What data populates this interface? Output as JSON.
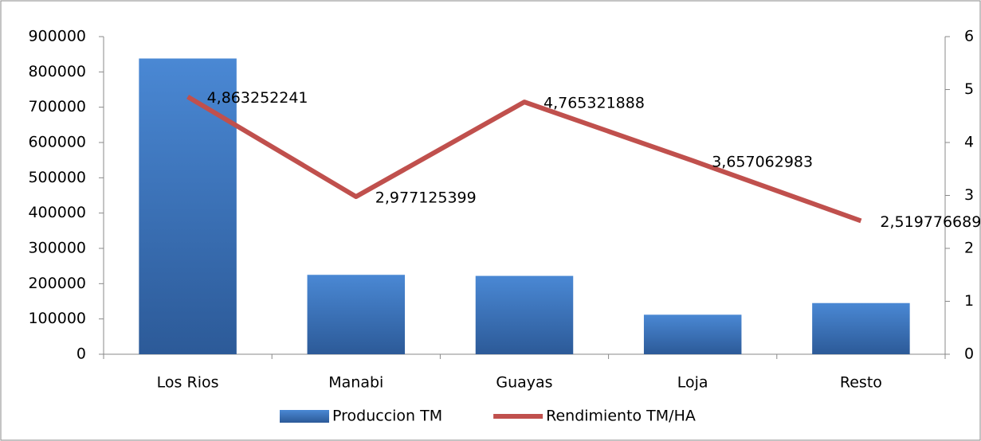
{
  "chart_data": {
    "type": "bar-line",
    "categories": [
      "Los Rios",
      "Manabi",
      "Guayas",
      "Loja",
      "Resto"
    ],
    "series": [
      {
        "name": "Produccion TM",
        "color": "#3a72bd",
        "type": "bar",
        "values": [
          838000,
          225000,
          222000,
          112000,
          145000
        ]
      },
      {
        "name": "Rendimiento TM/HA",
        "color": "#c0504d",
        "type": "line",
        "axis": "y2",
        "values": [
          4.863252241,
          2.977125399,
          4.765321888,
          3.657062983,
          2.519776689
        ],
        "value_labels": [
          "4,863252241",
          "2,977125399",
          "4,765321888",
          "3,657062983",
          "2,519776689"
        ]
      }
    ],
    "ylim": [
      0,
      900000
    ],
    "yticks": [
      0,
      100000,
      200000,
      300000,
      400000,
      500000,
      600000,
      700000,
      800000,
      900000
    ],
    "y2lim": [
      0,
      6
    ],
    "y2ticks": [
      0,
      1,
      2,
      3,
      4,
      5,
      6
    ],
    "legend": "bottom"
  }
}
